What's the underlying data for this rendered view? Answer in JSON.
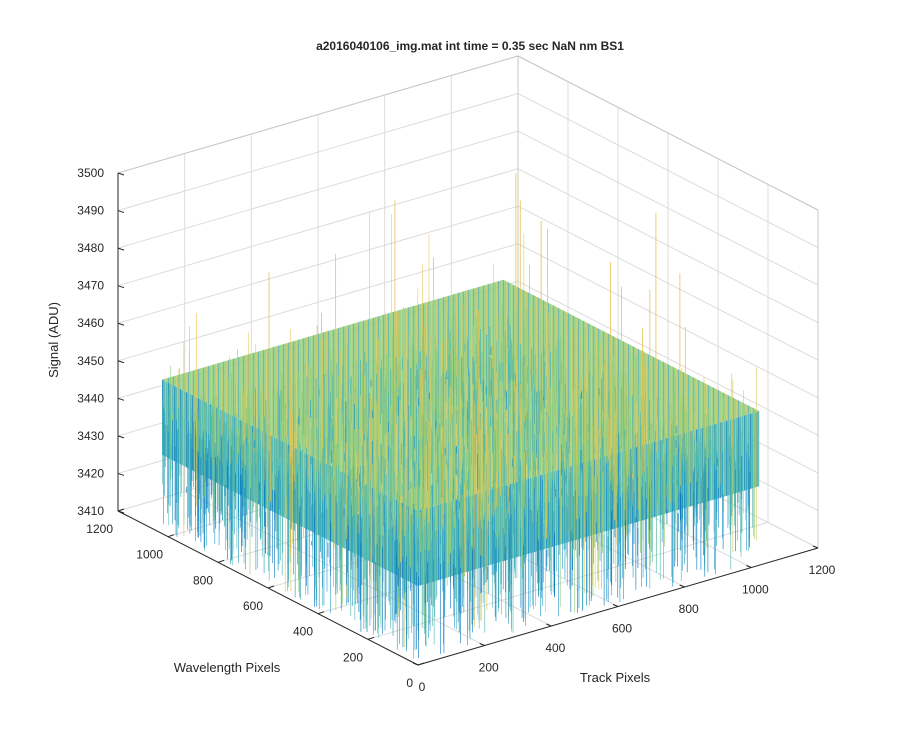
{
  "chart_data": {
    "type": "surface",
    "title": "a2016040106_img.mat int time = 0.35 sec  NaN nm BS1",
    "xlabel": "Track Pixels",
    "ylabel": "Wavelength Pixels",
    "zlabel": "Signal (ADU)",
    "xlim": [
      0,
      1200
    ],
    "ylim": [
      0,
      1200
    ],
    "zlim": [
      3410,
      3500
    ],
    "x_ticks": [
      0,
      200,
      400,
      600,
      800,
      1000,
      1200
    ],
    "y_ticks": [
      0,
      200,
      400,
      600,
      800,
      1000,
      1200
    ],
    "z_ticks": [
      3410,
      3420,
      3430,
      3440,
      3450,
      3460,
      3470,
      3480,
      3490,
      3500
    ],
    "data_extent": {
      "x": [
        0,
        1024
      ],
      "y": [
        0,
        1024
      ]
    },
    "signal": {
      "baseline": 3443,
      "std_dev": 8,
      "min_spike": 3412,
      "max_spike": 3495
    },
    "grid": true,
    "colormap": [
      "#0072bd",
      "#1f97c7",
      "#4db7b0",
      "#8fcb7a",
      "#d7c85a",
      "#e6c04b"
    ]
  }
}
